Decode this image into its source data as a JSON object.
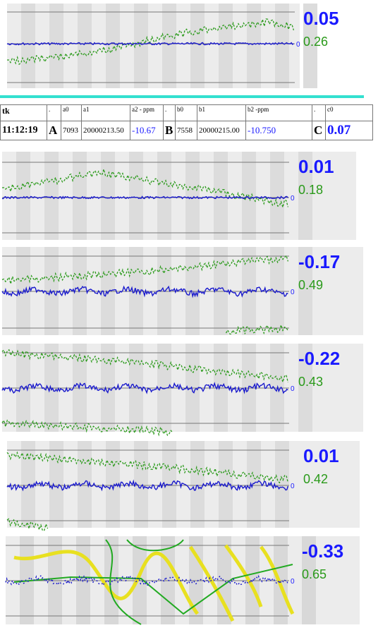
{
  "panels": [
    {
      "value": "0.05",
      "sub": "0.26",
      "zero": "0"
    },
    {
      "value": "0.01",
      "sub": "0.18",
      "zero": "0"
    },
    {
      "value": "-0.17",
      "sub": "0.49",
      "zero": "0"
    },
    {
      "value": "-0.22",
      "sub": "0.43",
      "zero": "0"
    },
    {
      "value": "0.01",
      "sub": "0.42",
      "zero": "0"
    },
    {
      "value": "-0.33",
      "sub": "0.65",
      "zero": "0"
    }
  ],
  "table": {
    "header": [
      "tk",
      ".",
      "a0",
      "a1",
      "a2 - ppm",
      ".",
      "b0",
      "b1",
      "b2 -ppm",
      ".",
      "c0"
    ],
    "row": [
      "11:12:19",
      "A",
      "7093",
      "20000213.50",
      "-10.67",
      "B",
      "7558",
      "20000215.00",
      "-10.750",
      "C",
      "0.07"
    ]
  }
}
